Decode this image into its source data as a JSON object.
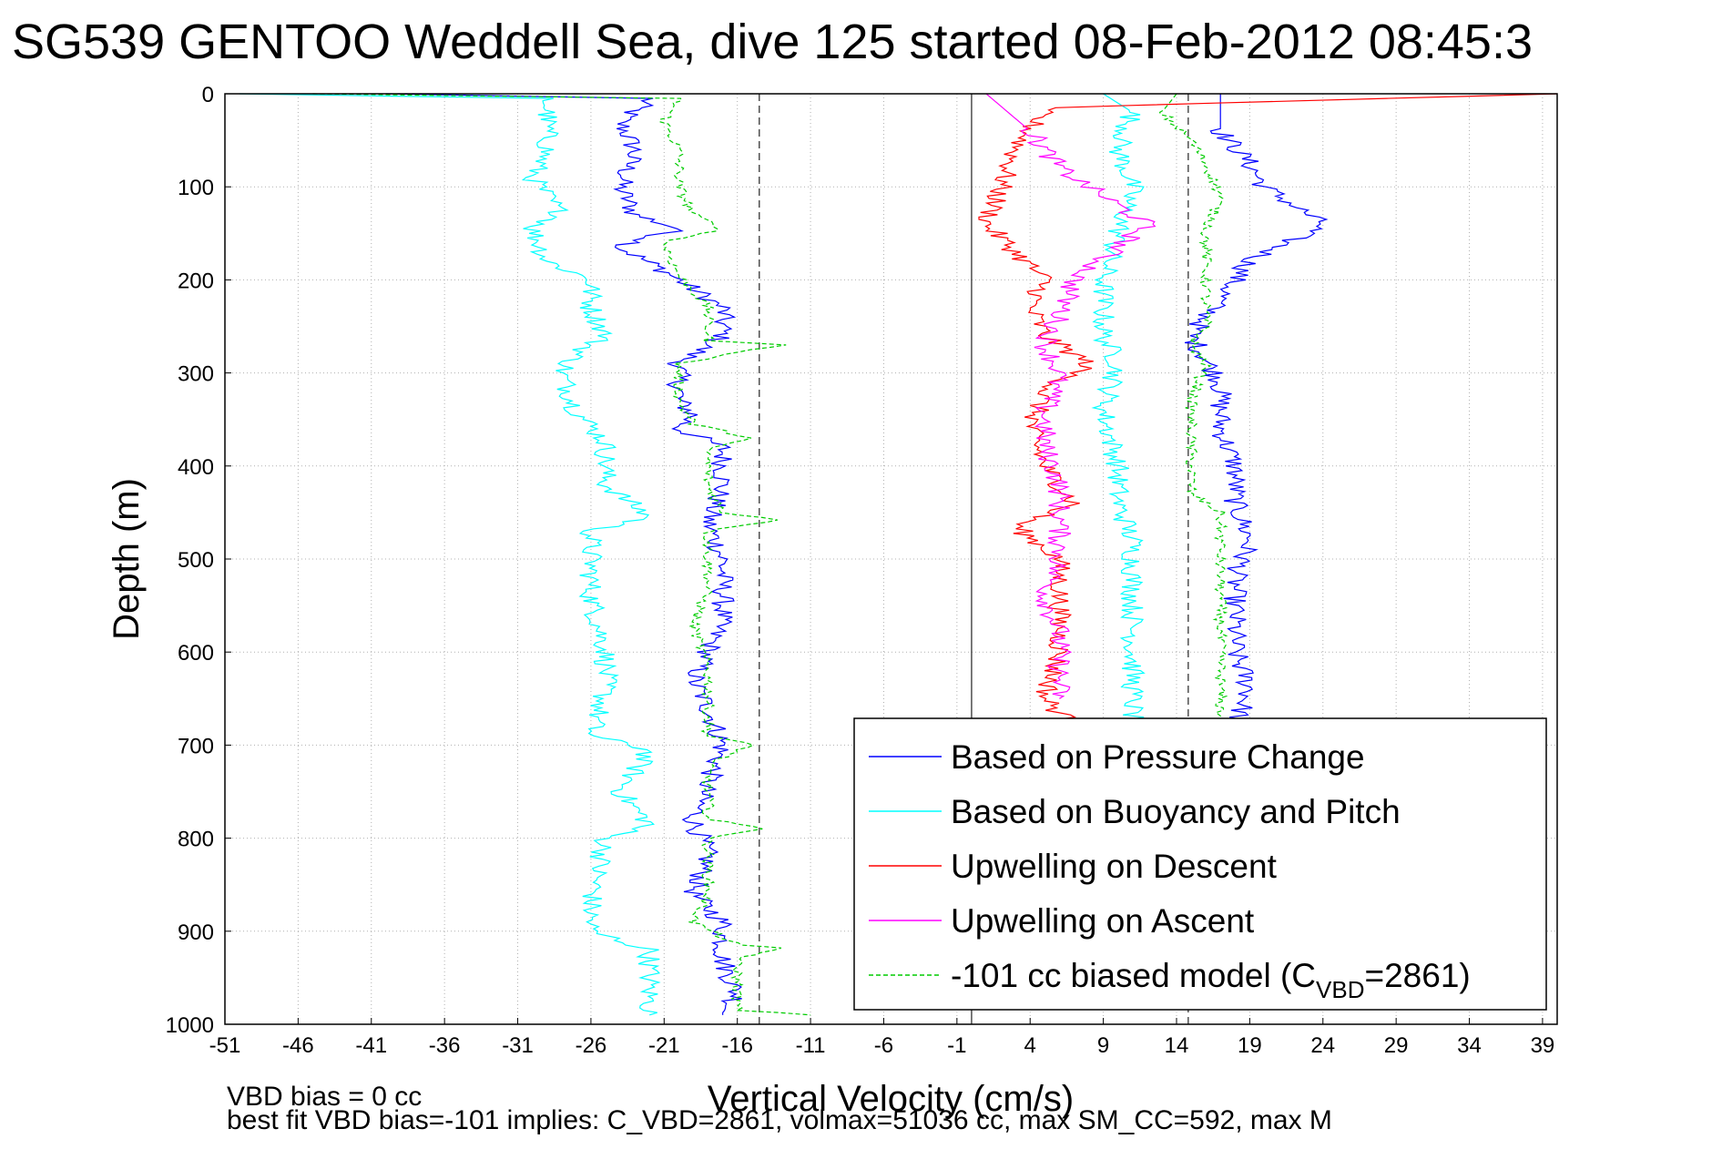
{
  "chart_data": {
    "type": "line",
    "title": "SG539 GENTOO Weddell Sea, dive 125 started 08-Feb-2012 08:45:3",
    "xlabel": "Vertical Velocity (cm/s)",
    "ylabel": "Depth (m)",
    "xlim": [
      -51,
      40
    ],
    "ylim": [
      1000,
      0
    ],
    "y_reversed": true,
    "grid": true,
    "x_ticks": [
      "-51",
      "-46",
      "-41",
      "-36",
      "-31",
      "-26",
      "-21",
      "-16",
      "-11",
      "-6",
      "-1",
      "4",
      "9",
      "14",
      "19",
      "24",
      "29",
      "34",
      "39"
    ],
    "y_ticks": [
      "0",
      "100",
      "200",
      "300",
      "400",
      "500",
      "600",
      "700",
      "800",
      "900",
      "1000"
    ],
    "legend": {
      "position": "bottom-right",
      "entries": [
        {
          "label": "Based on Pressure Change",
          "color": "#0000ff",
          "style": "solid"
        },
        {
          "label": "Based on Buoyancy and Pitch",
          "color": "#00ffff",
          "style": "solid"
        },
        {
          "label": "Upwelling on Descent",
          "color": "#ff0000",
          "style": "solid"
        },
        {
          "label": "Upwelling on Ascent",
          "color": "#ff00ff",
          "style": "solid"
        },
        {
          "label_main": "-101 cc biased model (C",
          "label_sub": "VBD",
          "label_tail": "=2861)",
          "color": "#00cc00",
          "style": "dashed"
        }
      ]
    },
    "reference_lines": [
      {
        "x": -14.5,
        "style": "dashed"
      },
      {
        "x": 0,
        "style": "solid"
      },
      {
        "x": 14.8,
        "style": "dashed"
      }
    ],
    "series": [
      {
        "name": "Based on Pressure Change",
        "color": "#0000ff",
        "points": [
          [
            -40,
            0
          ],
          [
            -22,
            5
          ],
          [
            -24,
            30
          ],
          [
            -23,
            60
          ],
          [
            -24,
            100
          ],
          [
            -23,
            130
          ],
          [
            -20,
            145
          ],
          [
            -24,
            165
          ],
          [
            -21,
            190
          ],
          [
            -20,
            200
          ],
          [
            -17,
            230
          ],
          [
            -17,
            260
          ],
          [
            -18,
            270
          ],
          [
            -20,
            290
          ],
          [
            -20,
            330
          ],
          [
            -19,
            345
          ],
          [
            -20,
            360
          ],
          [
            -17,
            380
          ],
          [
            -17,
            420
          ],
          [
            -18,
            460
          ],
          [
            -17,
            500
          ],
          [
            -17,
            560
          ],
          [
            -18,
            600
          ],
          [
            -19,
            630
          ],
          [
            -18,
            660
          ],
          [
            -17,
            700
          ],
          [
            -18,
            740
          ],
          [
            -19,
            780
          ],
          [
            -18,
            820
          ],
          [
            -19,
            860
          ],
          [
            -17,
            890
          ],
          [
            -17,
            930
          ],
          [
            -16,
            970
          ],
          [
            -17,
            990
          ]
        ],
        "points_ascent": [
          [
            17,
            0
          ],
          [
            17,
            40
          ],
          [
            19,
            75
          ],
          [
            20,
            100
          ],
          [
            24,
            140
          ],
          [
            19,
            180
          ],
          [
            17,
            220
          ],
          [
            15,
            260
          ],
          [
            16,
            285
          ],
          [
            17,
            310
          ],
          [
            17,
            360
          ],
          [
            18,
            400
          ],
          [
            18,
            440
          ],
          [
            19,
            480
          ],
          [
            18,
            520
          ],
          [
            18,
            560
          ],
          [
            18,
            600
          ],
          [
            19,
            640
          ],
          [
            18,
            680
          ]
        ]
      },
      {
        "name": "Based on Buoyancy and Pitch",
        "color": "#00ffff",
        "points": [
          [
            -50,
            0
          ],
          [
            -29,
            5
          ],
          [
            -29,
            30
          ],
          [
            -29,
            60
          ],
          [
            -30,
            90
          ],
          [
            -28,
            130
          ],
          [
            -30,
            145
          ],
          [
            -29,
            180
          ],
          [
            -26,
            200
          ],
          [
            -26,
            230
          ],
          [
            -25,
            260
          ],
          [
            -27,
            280
          ],
          [
            -28,
            300
          ],
          [
            -27,
            340
          ],
          [
            -25,
            375
          ],
          [
            -25,
            420
          ],
          [
            -22,
            455
          ],
          [
            -26,
            470
          ],
          [
            -26,
            540
          ],
          [
            -25,
            600
          ],
          [
            -25,
            640
          ],
          [
            -26,
            690
          ],
          [
            -22,
            705
          ],
          [
            -24,
            750
          ],
          [
            -22,
            785
          ],
          [
            -25,
            800
          ],
          [
            -26,
            870
          ],
          [
            -26,
            900
          ],
          [
            -22,
            920
          ],
          [
            -22,
            960
          ],
          [
            -22,
            990
          ]
        ],
        "points_ascent": [
          [
            9,
            0
          ],
          [
            11,
            20
          ],
          [
            10,
            60
          ],
          [
            11,
            100
          ],
          [
            10,
            150
          ],
          [
            9,
            200
          ],
          [
            9,
            260
          ],
          [
            10,
            290
          ],
          [
            9,
            340
          ],
          [
            10,
            400
          ],
          [
            10,
            440
          ],
          [
            11,
            480
          ],
          [
            11,
            540
          ],
          [
            11,
            600
          ],
          [
            11,
            650
          ],
          [
            11,
            680
          ]
        ]
      },
      {
        "name": "Upwelling on Descent",
        "color": "#ff0000",
        "points": [
          [
            40,
            0
          ],
          [
            5,
            15
          ],
          [
            3,
            60
          ],
          [
            2,
            100
          ],
          [
            1,
            140
          ],
          [
            3,
            170
          ],
          [
            5,
            200
          ],
          [
            4,
            230
          ],
          [
            5,
            260
          ],
          [
            8,
            290
          ],
          [
            5,
            320
          ],
          [
            4,
            360
          ],
          [
            5,
            400
          ],
          [
            7,
            440
          ],
          [
            3,
            465
          ],
          [
            6,
            500
          ],
          [
            6,
            560
          ],
          [
            6,
            600
          ],
          [
            5,
            650
          ],
          [
            7,
            680
          ]
        ]
      },
      {
        "name": "Upwelling on Ascent",
        "color": "#ff00ff",
        "points": [
          [
            1,
            0
          ],
          [
            4,
            40
          ],
          [
            6,
            80
          ],
          [
            9,
            110
          ],
          [
            12,
            140
          ],
          [
            10,
            165
          ],
          [
            7,
            200
          ],
          [
            6,
            240
          ],
          [
            5,
            270
          ],
          [
            6,
            300
          ],
          [
            5,
            340
          ],
          [
            5,
            380
          ],
          [
            6,
            420
          ],
          [
            6,
            460
          ],
          [
            6,
            500
          ],
          [
            5,
            540
          ],
          [
            6,
            580
          ],
          [
            6,
            620
          ],
          [
            6,
            650
          ]
        ]
      },
      {
        "name": "-101 cc biased model",
        "color": "#00cc00",
        "style": "dashed",
        "points": [
          [
            -45,
            0
          ],
          [
            -20,
            5
          ],
          [
            -21,
            30
          ],
          [
            -20,
            60
          ],
          [
            -20,
            100
          ],
          [
            -19,
            130
          ],
          [
            -17,
            145
          ],
          [
            -21,
            160
          ],
          [
            -20,
            195
          ],
          [
            -18,
            230
          ],
          [
            -18,
            265
          ],
          [
            -13,
            270
          ],
          [
            -20,
            290
          ],
          [
            -20,
            330
          ],
          [
            -19,
            355
          ],
          [
            -15,
            370
          ],
          [
            -18,
            380
          ],
          [
            -18,
            420
          ],
          [
            -17,
            450
          ],
          [
            -13,
            458
          ],
          [
            -18,
            470
          ],
          [
            -18,
            530
          ],
          [
            -19,
            570
          ],
          [
            -18,
            620
          ],
          [
            -18,
            690
          ],
          [
            -15,
            700
          ],
          [
            -18,
            720
          ],
          [
            -18,
            780
          ],
          [
            -14,
            790
          ],
          [
            -18,
            800
          ],
          [
            -18,
            860
          ],
          [
            -19,
            890
          ],
          [
            -16,
            915
          ],
          [
            -13,
            918
          ],
          [
            -16,
            930
          ],
          [
            -16,
            985
          ],
          [
            -11,
            990
          ]
        ],
        "points_ascent": [
          [
            14,
            0
          ],
          [
            13,
            20
          ],
          [
            15,
            50
          ],
          [
            16,
            75
          ],
          [
            17,
            110
          ],
          [
            16,
            150
          ],
          [
            16,
            200
          ],
          [
            16,
            250
          ],
          [
            15,
            270
          ],
          [
            16,
            290
          ],
          [
            15,
            330
          ],
          [
            15,
            370
          ],
          [
            15,
            400
          ],
          [
            15,
            430
          ],
          [
            17,
            450
          ],
          [
            17,
            480
          ],
          [
            17,
            520
          ],
          [
            17,
            560
          ],
          [
            17,
            620
          ],
          [
            17,
            680
          ]
        ]
      }
    ]
  },
  "footer": {
    "line1": "VBD bias = 0 cc",
    "line2": "best fit VBD bias=-101 implies: C_VBD=2861, volmax=51036 cc, max SM_CC=592, max M"
  }
}
